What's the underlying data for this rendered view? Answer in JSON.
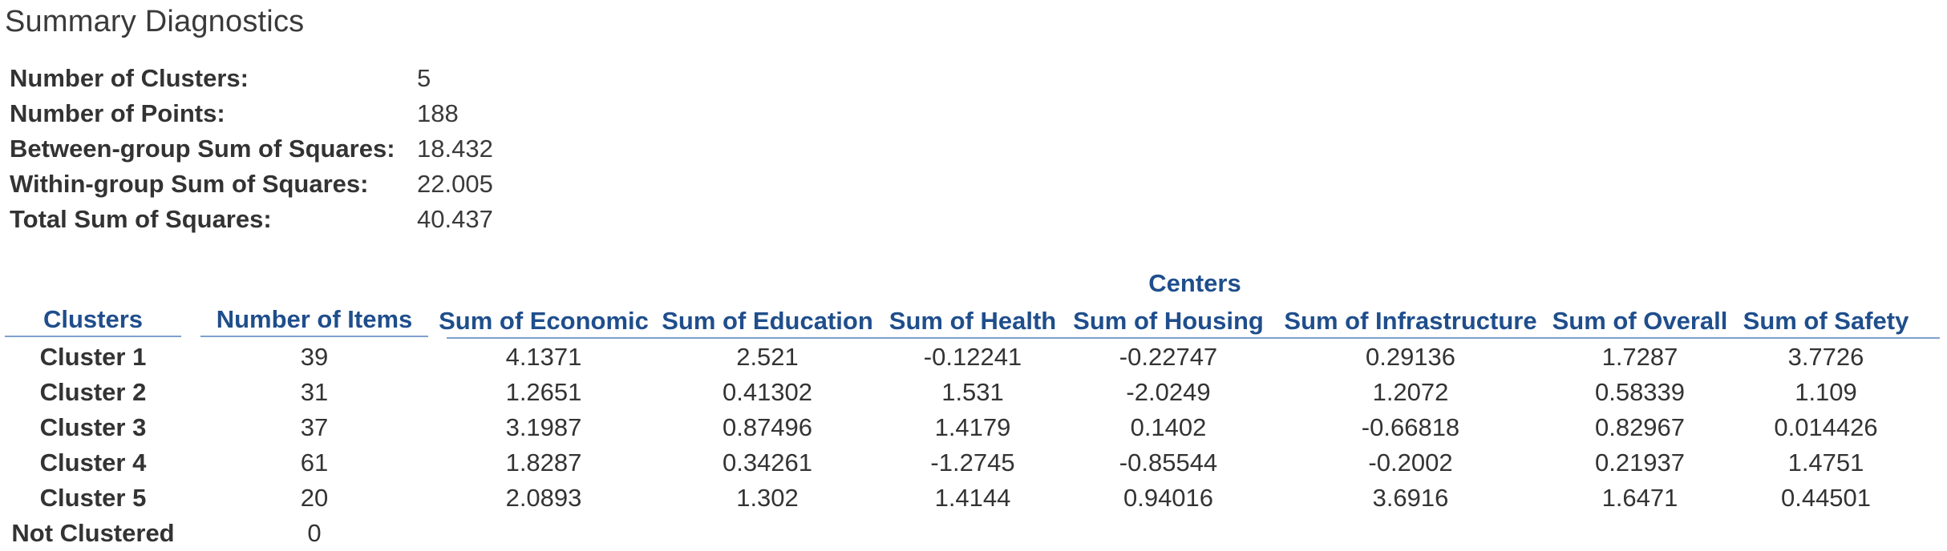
{
  "title": "Summary Diagnostics",
  "summary": [
    {
      "label": "Number of Clusters:",
      "value": "5"
    },
    {
      "label": "Number of Points:",
      "value": "188"
    },
    {
      "label": "Between-group Sum of Squares:",
      "value": "18.432"
    },
    {
      "label": "Within-group Sum of Squares:",
      "value": "22.005"
    },
    {
      "label": "Total Sum of Squares:",
      "value": "40.437"
    }
  ],
  "table": {
    "group_header": "Centers",
    "headers": {
      "clusters": "Clusters",
      "items": "Number of Items",
      "economic": "Sum of Economic",
      "education": "Sum of Education",
      "health": "Sum of Health",
      "housing": "Sum of Housing",
      "infrastructure": "Sum of Infrastructure",
      "overall": "Sum of Overall",
      "safety": "Sum of Safety"
    },
    "rows": [
      {
        "cluster": "Cluster 1",
        "items": "39",
        "economic": "4.1371",
        "education": "2.521",
        "health": "-0.12241",
        "housing": "-0.22747",
        "infrastructure": "0.29136",
        "overall": "1.7287",
        "safety": "3.7726"
      },
      {
        "cluster": "Cluster 2",
        "items": "31",
        "economic": "1.2651",
        "education": "0.41302",
        "health": "1.531",
        "housing": "-2.0249",
        "infrastructure": "1.2072",
        "overall": "0.58339",
        "safety": "1.109"
      },
      {
        "cluster": "Cluster 3",
        "items": "37",
        "economic": "3.1987",
        "education": "0.87496",
        "health": "1.4179",
        "housing": "0.1402",
        "infrastructure": "-0.66818",
        "overall": "0.82967",
        "safety": "0.014426"
      },
      {
        "cluster": "Cluster 4",
        "items": "61",
        "economic": "1.8287",
        "education": "0.34261",
        "health": "-1.2745",
        "housing": "-0.85544",
        "infrastructure": "-0.2002",
        "overall": "0.21937",
        "safety": "1.4751"
      },
      {
        "cluster": "Cluster 5",
        "items": "20",
        "economic": "2.0893",
        "education": "1.302",
        "health": "1.4144",
        "housing": "0.94016",
        "infrastructure": "3.6916",
        "overall": "1.6471",
        "safety": "0.44501"
      },
      {
        "cluster": "Not Clustered",
        "items": "0",
        "economic": "",
        "education": "",
        "health": "",
        "housing": "",
        "infrastructure": "",
        "overall": "",
        "safety": ""
      }
    ]
  }
}
